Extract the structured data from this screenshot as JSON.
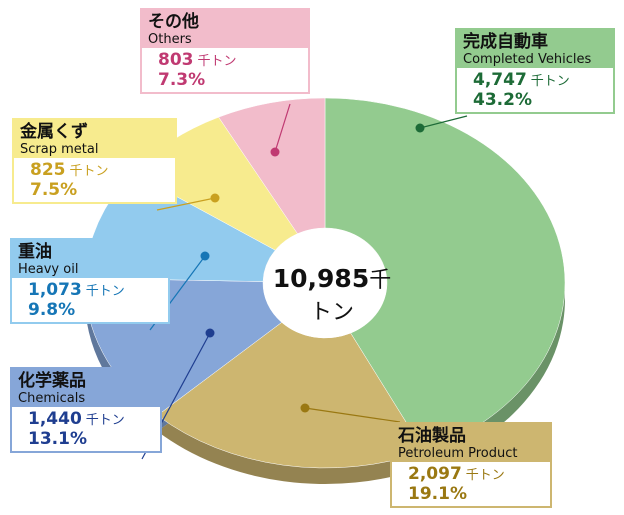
{
  "chart_data": {
    "type": "donut",
    "total": 10985,
    "total_label": "10,985",
    "unit": "千トン",
    "series": [
      {
        "name": "完成自動車",
        "name_en": "Completed Vehicles",
        "value": 4747,
        "value_label": "4,747",
        "percent": 43.2,
        "percent_label": "43.2%",
        "color": "#93cb8f",
        "text_color": "#1d6b37"
      },
      {
        "name": "石油製品",
        "name_en": "Petroleum Product",
        "value": 2097,
        "value_label": "2,097",
        "percent": 19.1,
        "percent_label": "19.1%",
        "color": "#cdb670",
        "text_color": "#9a7812"
      },
      {
        "name": "化学薬品",
        "name_en": "Chemicals",
        "value": 1440,
        "value_label": "1,440",
        "percent": 13.1,
        "percent_label": "13.1%",
        "color": "#86a6d8",
        "text_color": "#1f3e90"
      },
      {
        "name": "重油",
        "name_en": "Heavy oil",
        "value": 1073,
        "value_label": "1,073",
        "percent": 9.8,
        "percent_label": "9.8%",
        "color": "#92cbee",
        "text_color": "#1676b6"
      },
      {
        "name": "金属くず",
        "name_en": "Scrap metal",
        "value": 825,
        "value_label": "825",
        "percent": 7.5,
        "percent_label": "7.5%",
        "color": "#f7eb8e",
        "text_color": "#c9a020"
      },
      {
        "name": "その他",
        "name_en": "Others",
        "value": 803,
        "value_label": "803",
        "percent": 7.3,
        "percent_label": "7.3%",
        "color": "#f2bccb",
        "text_color": "#c03a72"
      }
    ]
  }
}
